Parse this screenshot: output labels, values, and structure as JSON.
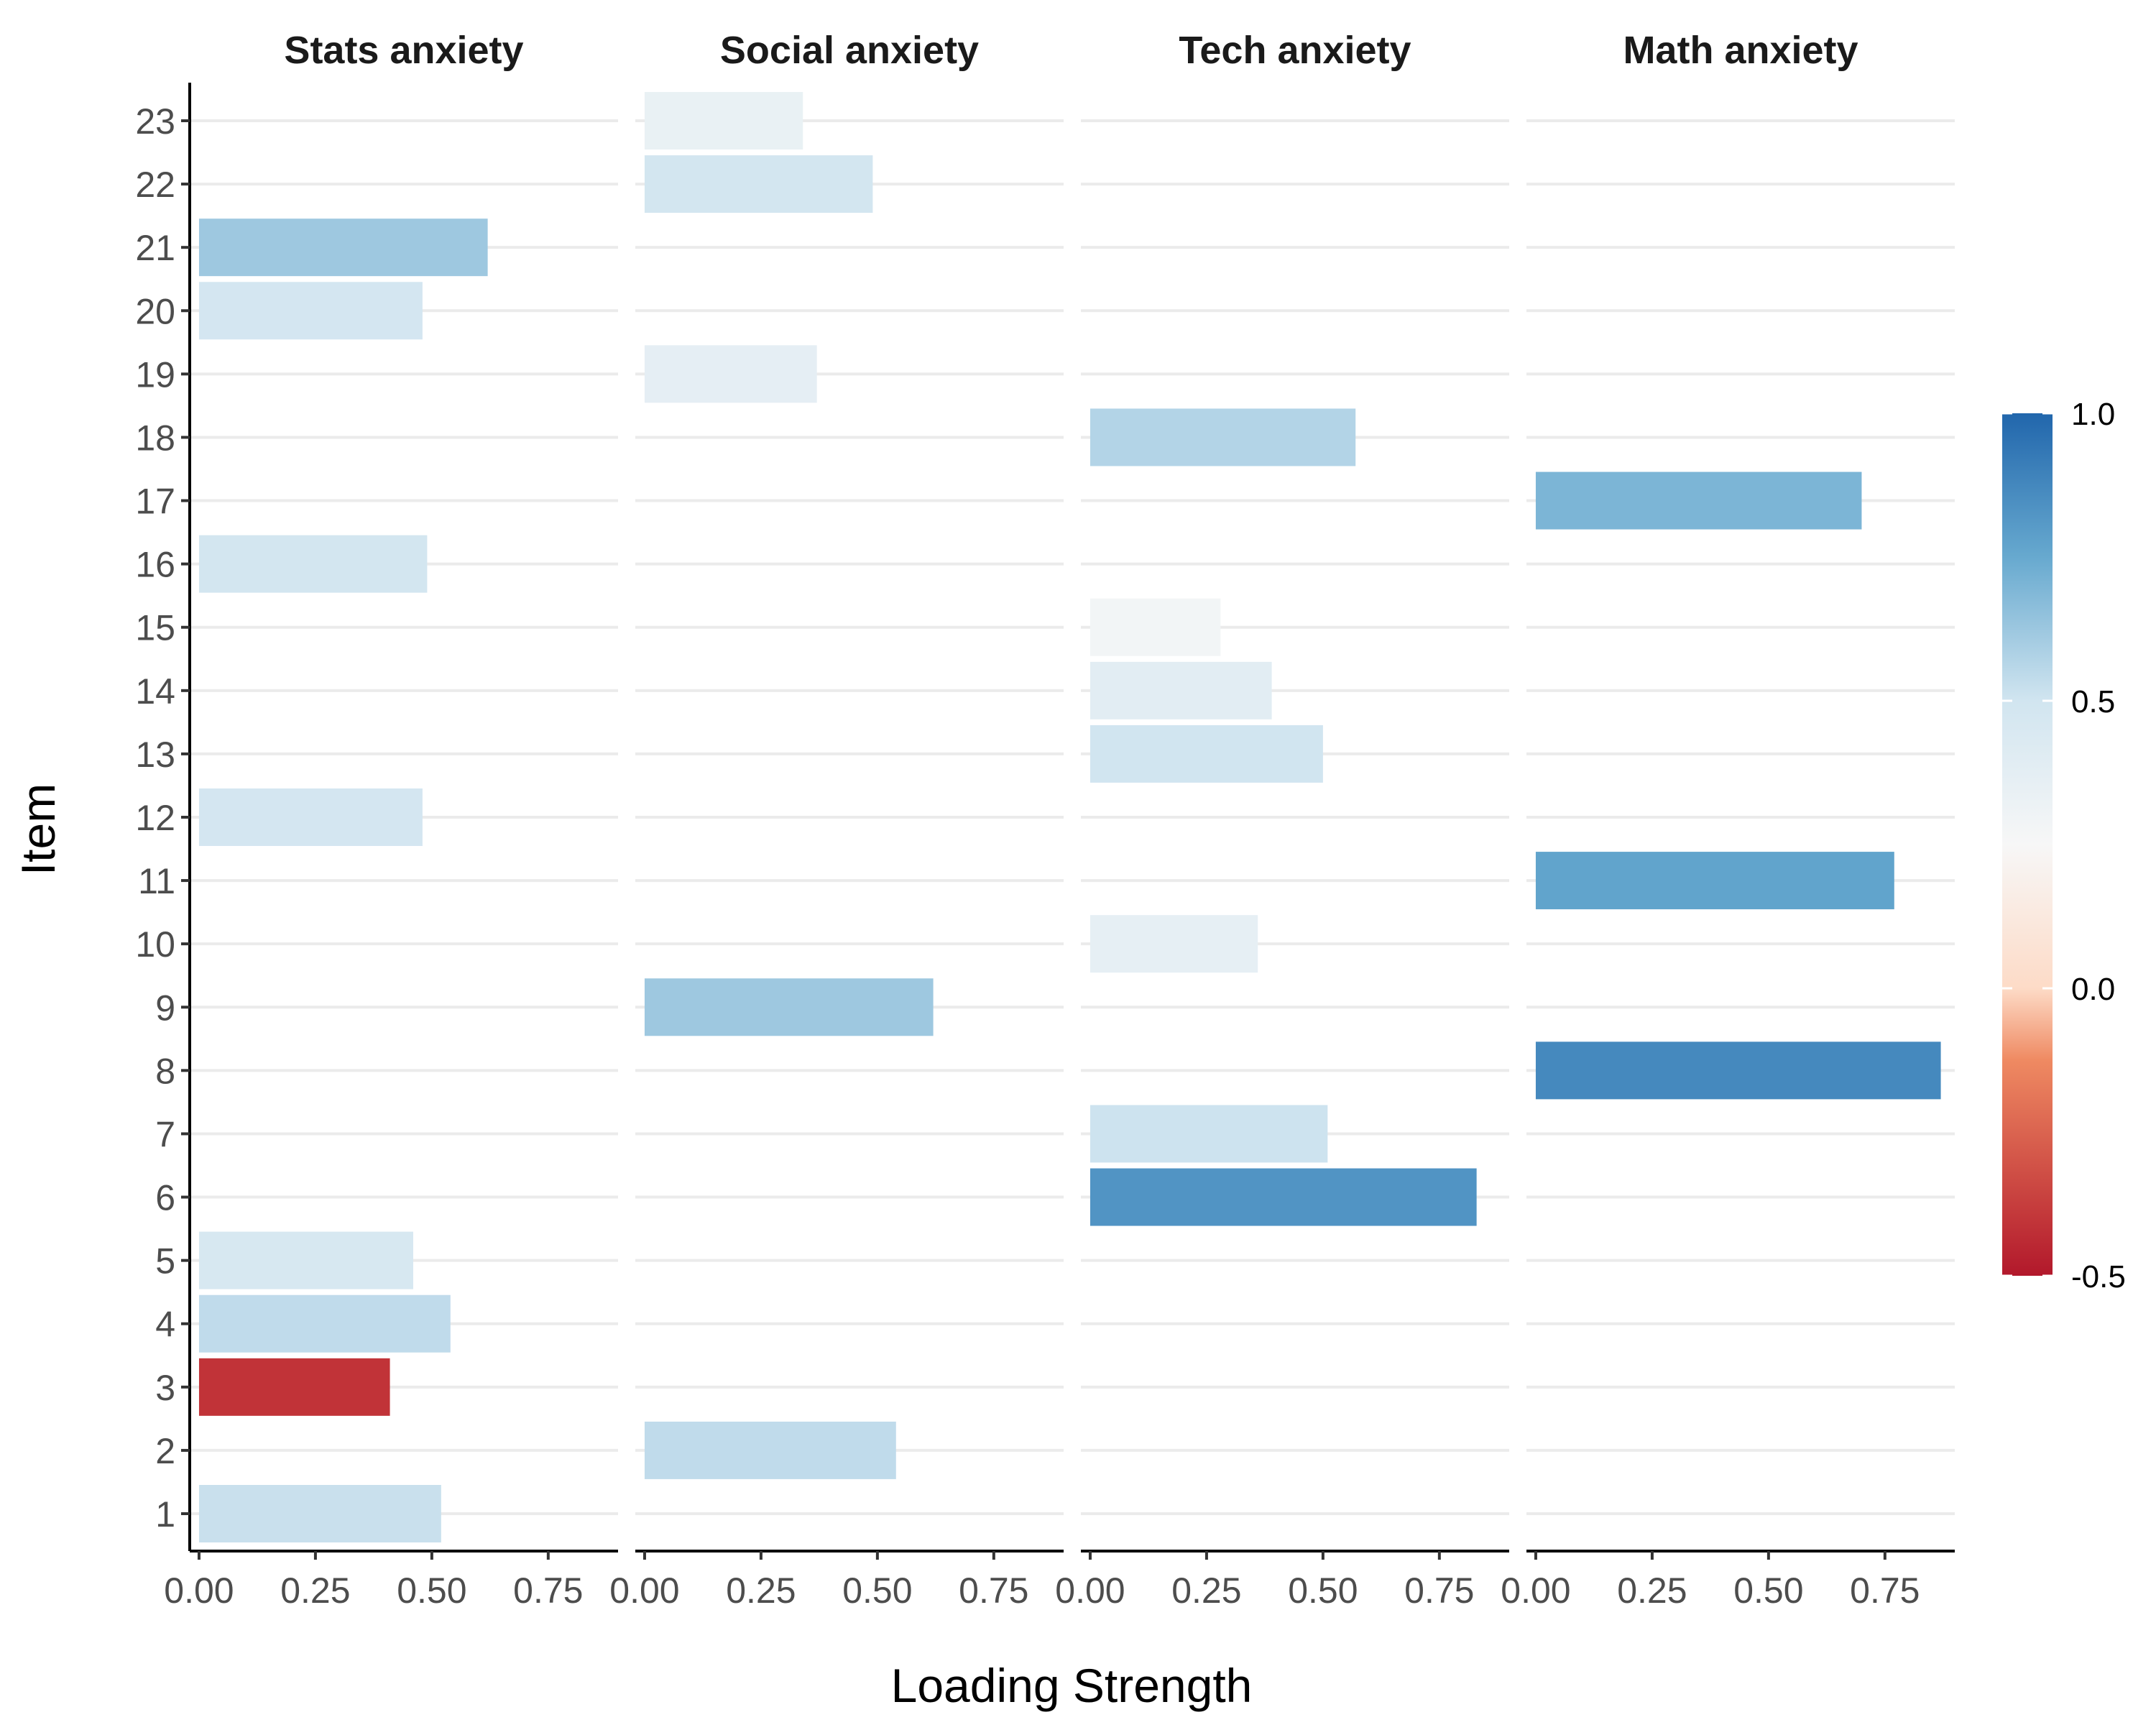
{
  "chart_data": {
    "type": "bar",
    "orientation": "horizontal",
    "xlabel": "Loading Strength",
    "ylabel": "Item",
    "xlim": [
      -0.02,
      0.9
    ],
    "x_ticks": [
      "0.00",
      "0.25",
      "0.50",
      "0.75"
    ],
    "x_tick_values": [
      0,
      0.25,
      0.5,
      0.75
    ],
    "items": [
      "1",
      "2",
      "3",
      "4",
      "5",
      "6",
      "7",
      "8",
      "9",
      "10",
      "11",
      "12",
      "13",
      "14",
      "15",
      "16",
      "17",
      "18",
      "19",
      "20",
      "21",
      "22",
      "23"
    ],
    "color_scale": {
      "min": -0.5,
      "max": 1.0,
      "ticks": [
        "1.0",
        "0.5",
        "0.0",
        "-0.5"
      ],
      "tick_values": [
        1.0,
        0.5,
        0.0,
        -0.5
      ],
      "stops": [
        {
          "value": -0.5,
          "color": "#b2182b"
        },
        {
          "value": -0.125,
          "color": "#ef8a62"
        },
        {
          "value": 0.0,
          "color": "#fddbc7"
        },
        {
          "value": 0.25,
          "color": "#f7f7f7"
        },
        {
          "value": 0.5,
          "color": "#d1e5f0"
        },
        {
          "value": 0.75,
          "color": "#67a9cf"
        },
        {
          "value": 1.0,
          "color": "#2166ac"
        }
      ]
    },
    "facets": [
      {
        "name": "Stats anxiety",
        "bars": [
          {
            "item": "1",
            "length": 0.52,
            "loading": 0.52
          },
          {
            "item": "3",
            "length": 0.41,
            "loading": -0.41
          },
          {
            "item": "4",
            "length": 0.54,
            "loading": 0.54
          },
          {
            "item": "5",
            "length": 0.46,
            "loading": 0.46
          },
          {
            "item": "12",
            "length": 0.48,
            "loading": 0.48
          },
          {
            "item": "16",
            "length": 0.49,
            "loading": 0.49
          },
          {
            "item": "20",
            "length": 0.48,
            "loading": 0.48
          },
          {
            "item": "21",
            "length": 0.62,
            "loading": 0.62
          }
        ]
      },
      {
        "name": "Social anxiety",
        "bars": [
          {
            "item": "2",
            "length": 0.54,
            "loading": 0.54
          },
          {
            "item": "9",
            "length": 0.62,
            "loading": 0.62
          },
          {
            "item": "19",
            "length": 0.37,
            "loading": 0.37
          },
          {
            "item": "22",
            "length": 0.49,
            "loading": 0.49
          },
          {
            "item": "23",
            "length": 0.34,
            "loading": 0.34
          }
        ]
      },
      {
        "name": "Tech anxiety",
        "bars": [
          {
            "item": "6",
            "length": 0.83,
            "loading": 0.83
          },
          {
            "item": "7",
            "length": 0.51,
            "loading": 0.51
          },
          {
            "item": "10",
            "length": 0.36,
            "loading": 0.36
          },
          {
            "item": "13",
            "length": 0.5,
            "loading": 0.5
          },
          {
            "item": "14",
            "length": 0.39,
            "loading": 0.39
          },
          {
            "item": "15",
            "length": 0.28,
            "loading": 0.28
          },
          {
            "item": "18",
            "length": 0.57,
            "loading": 0.57
          }
        ]
      },
      {
        "name": "Math anxiety",
        "bars": [
          {
            "item": "8",
            "length": 0.87,
            "loading": 0.87
          },
          {
            "item": "11",
            "length": 0.77,
            "loading": 0.77
          },
          {
            "item": "17",
            "length": 0.7,
            "loading": 0.7
          }
        ]
      }
    ]
  }
}
